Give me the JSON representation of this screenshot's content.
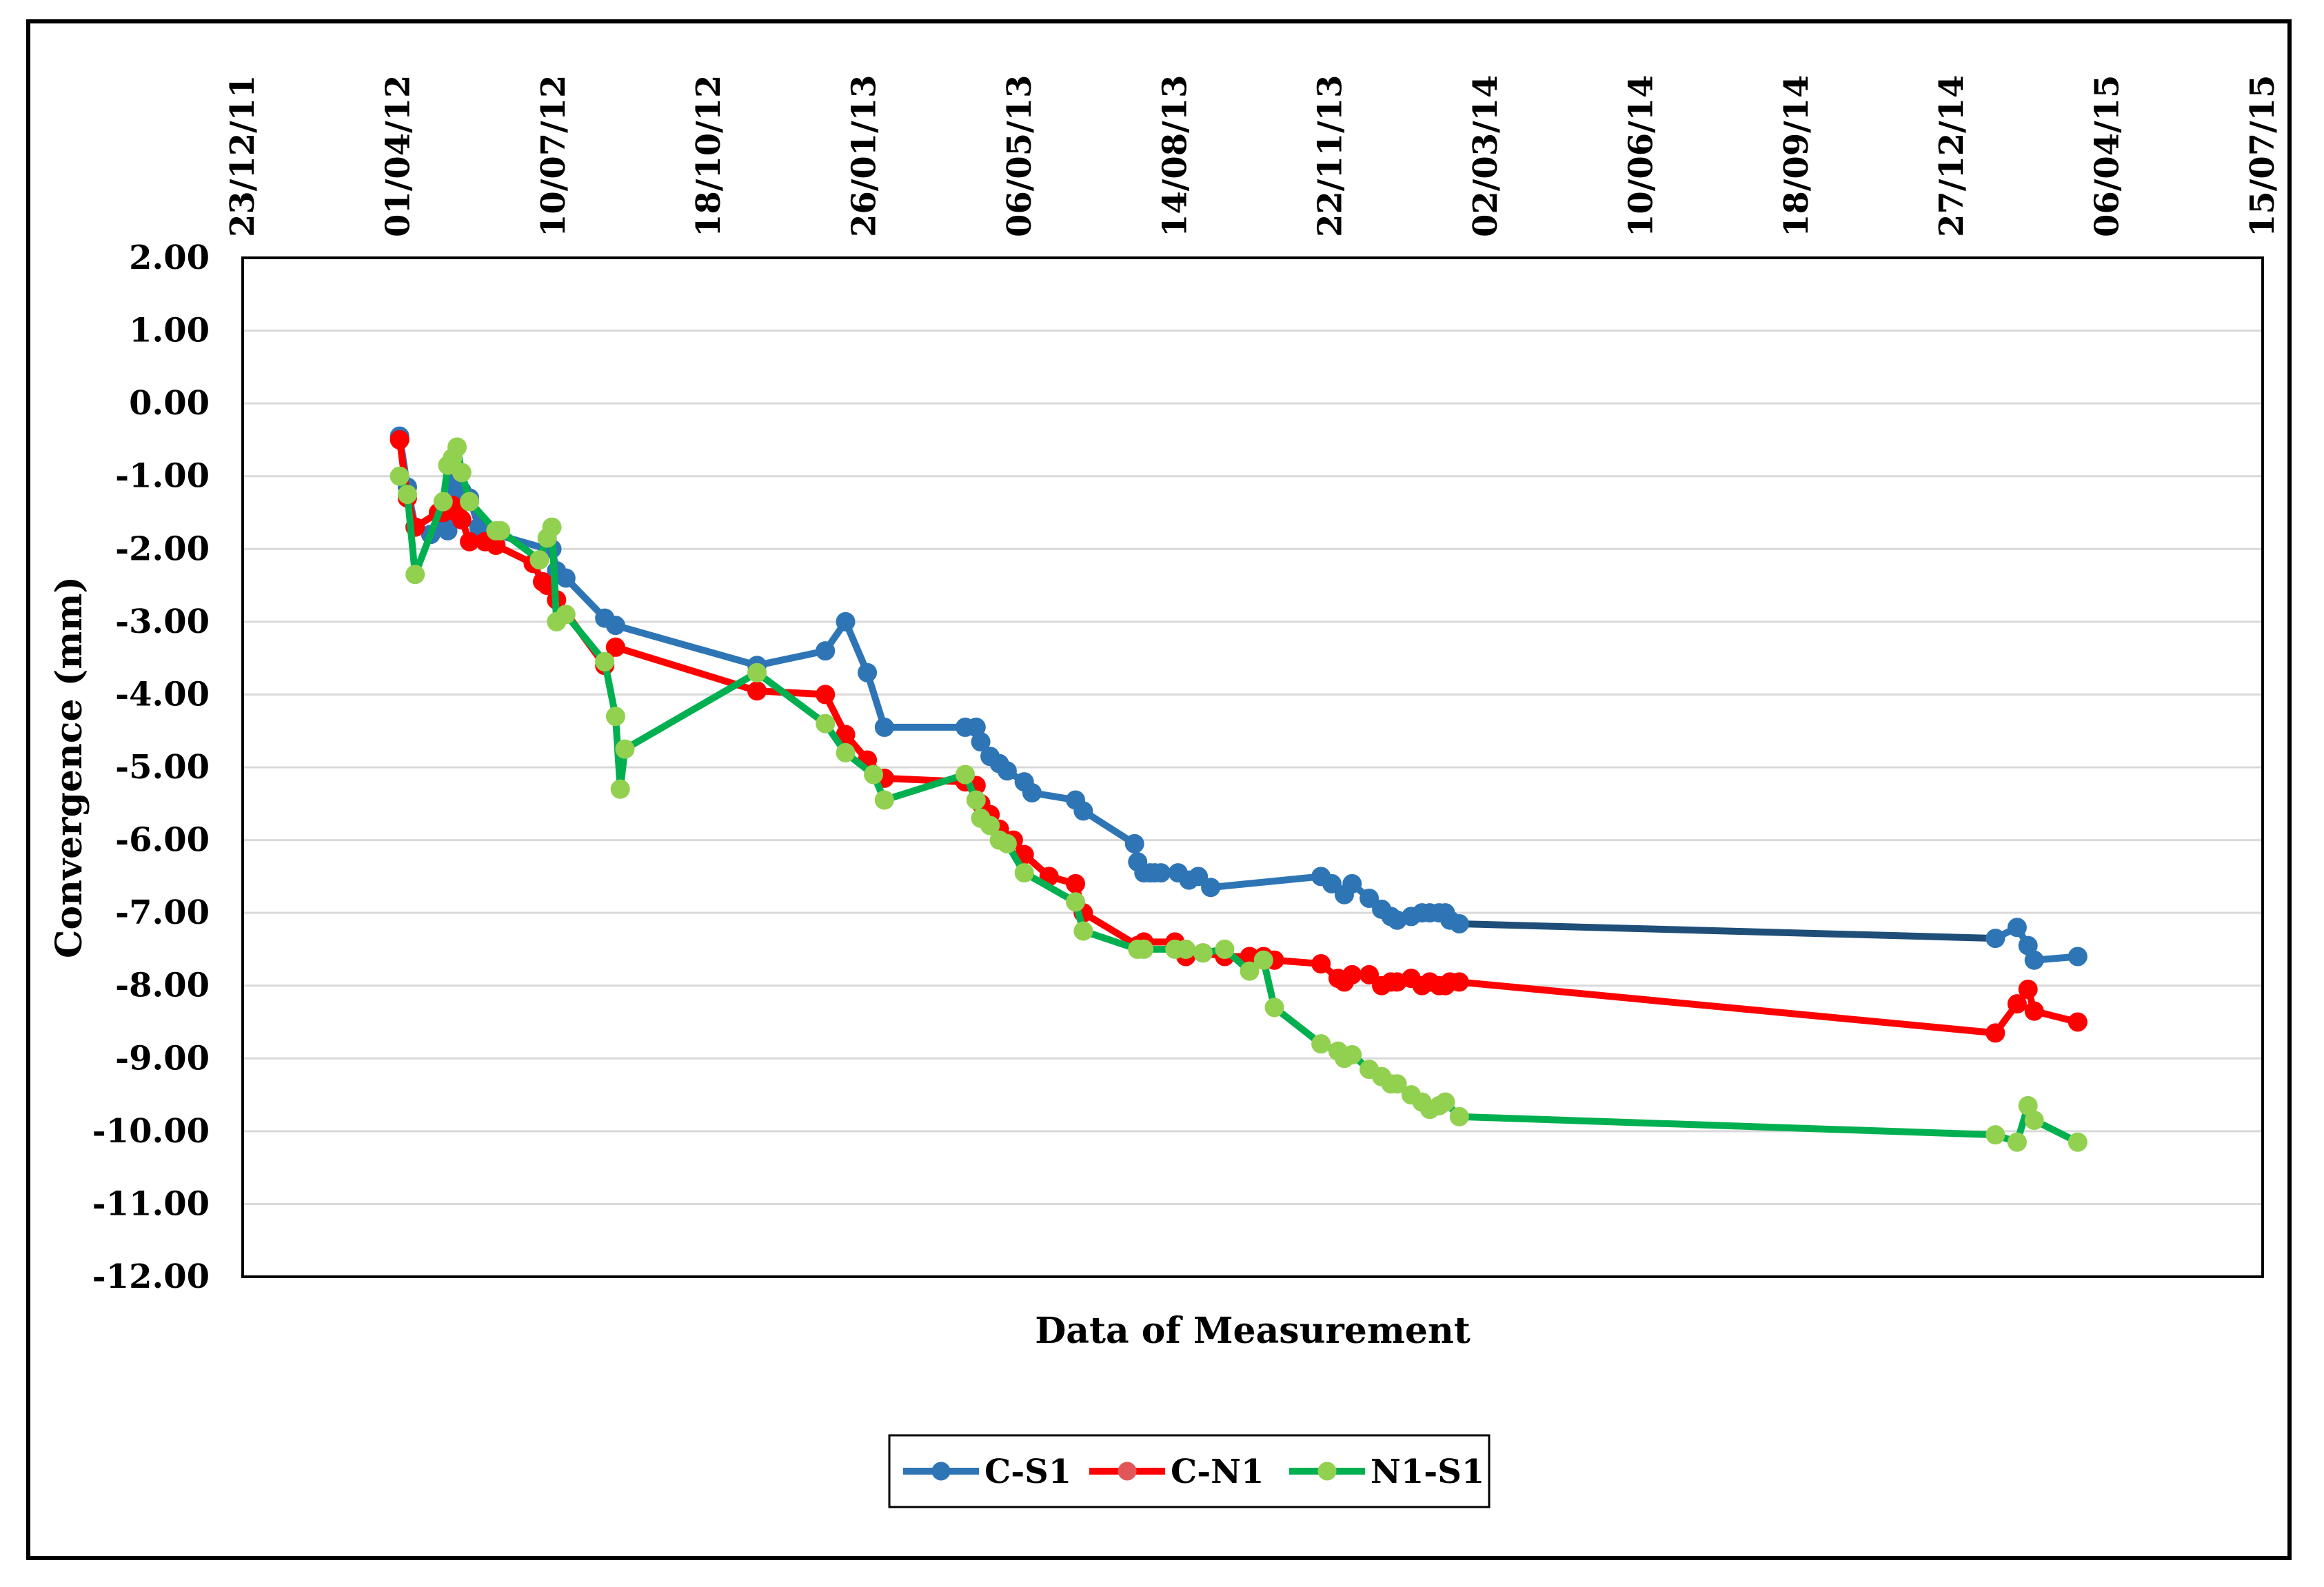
{
  "chart_data": {
    "type": "line",
    "xlabel": "Data of Measurement",
    "ylabel": "Convergence (mm)",
    "ylim": [
      -12,
      2
    ],
    "yticks": [
      2,
      1,
      0,
      -1,
      -2,
      -3,
      -4,
      -5,
      -6,
      -7,
      -8,
      -9,
      -10,
      -11,
      -12
    ],
    "ytick_labels": [
      "2.00",
      "1.00",
      "0.00",
      "-1.00",
      "-2.00",
      "-3.00",
      "-4.00",
      "-5.00",
      "-6.00",
      "-7.00",
      "-8.00",
      "-9.00",
      "-10.00",
      "-11.00",
      "-12.00"
    ],
    "xlim": [
      "2011-12-23",
      "2015-07-15"
    ],
    "xticks": [
      "2011-12-23",
      "2012-04-01",
      "2012-07-10",
      "2012-10-18",
      "2013-01-26",
      "2013-05-06",
      "2013-08-14",
      "2013-11-22",
      "2014-03-02",
      "2014-06-10",
      "2014-09-18",
      "2014-12-27",
      "2015-04-06",
      "2015-07-15"
    ],
    "xtick_labels": [
      "23/12/11",
      "01/04/12",
      "10/07/12",
      "18/10/12",
      "26/01/13",
      "06/05/13",
      "14/08/13",
      "22/11/13",
      "02/03/14",
      "10/06/14",
      "18/09/14",
      "27/12/14",
      "06/04/15",
      "15/07/15"
    ],
    "grid": "horizontal",
    "legend_position": "bottom",
    "series": [
      {
        "name": "C-S1",
        "color": "#2e75b6",
        "gap_color": "#1f4e79",
        "x": [
          "2012-04-02",
          "2012-04-07",
          "2012-04-12",
          "2012-04-22",
          "2012-04-30",
          "2012-05-03",
          "2012-05-06",
          "2012-05-09",
          "2012-05-12",
          "2012-05-17",
          "2012-05-23",
          "2012-06-03",
          "2012-07-06",
          "2012-07-09",
          "2012-07-12",
          "2012-07-18",
          "2012-08-12",
          "2012-08-19",
          "2012-11-18",
          "2013-01-01",
          "2013-01-14",
          "2013-01-28",
          "2013-02-08",
          "2013-04-01",
          "2013-04-08",
          "2013-04-11",
          "2013-04-17",
          "2013-04-23",
          "2013-04-28",
          "2013-05-09",
          "2013-05-14",
          "2013-06-11",
          "2013-06-16",
          "2013-07-19",
          "2013-07-21",
          "2013-07-25",
          "2013-07-29",
          "2013-08-01",
          "2013-08-05",
          "2013-08-16",
          "2013-08-23",
          "2013-08-29",
          "2013-09-06",
          "2013-11-16",
          "2013-11-23",
          "2013-12-01",
          "2013-12-06",
          "2013-12-17",
          "2013-12-25",
          "2013-12-31",
          "2014-01-04",
          "2014-01-13",
          "2014-01-20",
          "2014-01-25",
          "2014-01-31",
          "2014-02-04",
          "2014-02-07",
          "2014-02-13",
          "2015-01-24",
          "2015-02-07",
          "2015-02-14",
          "2015-02-18",
          "2015-03-18"
        ],
        "values": [
          -0.45,
          -1.15,
          -1.7,
          -1.8,
          -1.7,
          -1.75,
          -1.1,
          -1.15,
          -1.2,
          -1.3,
          -1.7,
          -1.8,
          -2.0,
          -2.0,
          -2.3,
          -2.4,
          -2.95,
          -3.05,
          -3.6,
          -3.4,
          -3.0,
          -3.7,
          -4.45,
          -4.45,
          -4.45,
          -4.65,
          -4.85,
          -4.95,
          -5.05,
          -5.2,
          -5.35,
          -5.45,
          -5.6,
          -6.05,
          -6.3,
          -6.45,
          -6.45,
          -6.45,
          -6.45,
          -6.45,
          -6.55,
          -6.5,
          -6.65,
          -6.5,
          -6.6,
          -6.75,
          -6.6,
          -6.8,
          -6.95,
          -7.05,
          -7.1,
          -7.05,
          -7.0,
          -7.0,
          -7.0,
          -7.0,
          -7.1,
          -7.15,
          -7.35,
          -7.2,
          -7.45,
          -7.65,
          -7.6
        ]
      },
      {
        "name": "C-N1",
        "color": "#ff0000",
        "x": [
          "2012-04-02",
          "2012-04-07",
          "2012-04-12",
          "2012-04-27",
          "2012-04-30",
          "2012-05-06",
          "2012-05-09",
          "2012-05-12",
          "2012-05-17",
          "2012-05-27",
          "2012-06-03",
          "2012-06-27",
          "2012-07-03",
          "2012-07-06",
          "2012-07-12",
          "2012-08-12",
          "2012-08-19",
          "2012-11-18",
          "2013-01-01",
          "2013-01-14",
          "2013-01-28",
          "2013-02-08",
          "2013-04-01",
          "2013-04-08",
          "2013-04-11",
          "2013-04-17",
          "2013-04-23",
          "2013-05-02",
          "2013-05-09",
          "2013-05-25",
          "2013-06-11",
          "2013-06-16",
          "2013-07-21",
          "2013-07-25",
          "2013-08-14",
          "2013-08-21",
          "2013-09-01",
          "2013-09-15",
          "2013-10-01",
          "2013-10-10",
          "2013-10-17",
          "2013-11-16",
          "2013-11-27",
          "2013-12-01",
          "2013-12-06",
          "2013-12-17",
          "2013-12-25",
          "2013-12-31",
          "2014-01-04",
          "2014-01-13",
          "2014-01-20",
          "2014-01-25",
          "2014-01-31",
          "2014-02-04",
          "2014-02-07",
          "2014-02-13",
          "2015-01-24",
          "2015-02-07",
          "2015-02-14",
          "2015-02-18",
          "2015-03-18"
        ],
        "values": [
          -0.5,
          -1.3,
          -1.7,
          -1.5,
          -1.5,
          -1.4,
          -1.5,
          -1.6,
          -1.9,
          -1.9,
          -1.95,
          -2.2,
          -2.45,
          -2.5,
          -2.7,
          -3.6,
          -3.35,
          -3.95,
          -4.0,
          -4.55,
          -4.9,
          -5.15,
          -5.2,
          -5.25,
          -5.5,
          -5.65,
          -5.85,
          -6.0,
          -6.2,
          -6.5,
          -6.6,
          -7.0,
          -7.45,
          -7.4,
          -7.4,
          -7.6,
          -7.55,
          -7.6,
          -7.6,
          -7.6,
          -7.65,
          -7.7,
          -7.9,
          -7.95,
          -7.85,
          -7.85,
          -8.0,
          -7.95,
          -7.95,
          -7.9,
          -8.0,
          -7.95,
          -8.0,
          -8.0,
          -7.95,
          -7.95,
          -8.65,
          -8.25,
          -8.05,
          -8.35,
          -8.5
        ]
      },
      {
        "name": "N1-S1",
        "color": "#00b050",
        "marker_color": "#92d050",
        "x": [
          "2012-04-02",
          "2012-04-07",
          "2012-04-12",
          "2012-04-30",
          "2012-05-03",
          "2012-05-06",
          "2012-05-09",
          "2012-05-12",
          "2012-05-17",
          "2012-06-03",
          "2012-06-06",
          "2012-07-01",
          "2012-07-06",
          "2012-07-09",
          "2012-07-12",
          "2012-07-18",
          "2012-08-12",
          "2012-08-19",
          "2012-08-22",
          "2012-08-25",
          "2012-11-18",
          "2013-01-01",
          "2013-01-14",
          "2013-02-01",
          "2013-02-08",
          "2013-04-01",
          "2013-04-08",
          "2013-04-11",
          "2013-04-17",
          "2013-04-23",
          "2013-04-28",
          "2013-05-09",
          "2013-06-11",
          "2013-06-16",
          "2013-07-21",
          "2013-07-25",
          "2013-08-14",
          "2013-08-21",
          "2013-09-01",
          "2013-09-15",
          "2013-10-01",
          "2013-10-10",
          "2013-10-17",
          "2013-11-16",
          "2013-11-27",
          "2013-12-01",
          "2013-12-06",
          "2013-12-17",
          "2013-12-25",
          "2013-12-31",
          "2014-01-04",
          "2014-01-13",
          "2014-01-20",
          "2014-01-25",
          "2014-01-31",
          "2014-02-04",
          "2014-02-13",
          "2015-01-24",
          "2015-02-07",
          "2015-02-14",
          "2015-02-18",
          "2015-03-18"
        ],
        "values": [
          -1.0,
          -1.25,
          -2.35,
          -1.35,
          -0.85,
          -0.75,
          -0.6,
          -0.95,
          -1.35,
          -1.75,
          -1.75,
          -2.15,
          -1.85,
          -1.7,
          -3.0,
          -2.9,
          -3.55,
          -4.3,
          -5.3,
          -4.75,
          -3.7,
          -4.4,
          -4.8,
          -5.1,
          -5.45,
          -5.1,
          -5.45,
          -5.7,
          -5.8,
          -6.0,
          -6.05,
          -6.45,
          -6.85,
          -7.25,
          -7.5,
          -7.5,
          -7.5,
          -7.5,
          -7.55,
          -7.5,
          -7.8,
          -7.65,
          -8.3,
          -8.8,
          -8.9,
          -9.0,
          -8.95,
          -9.15,
          -9.25,
          -9.35,
          -9.35,
          -9.5,
          -9.6,
          -9.7,
          -9.65,
          -9.6,
          -9.8,
          -10.05,
          -10.15,
          -9.65,
          -9.85,
          -10.15
        ]
      }
    ]
  },
  "legend": {
    "items": [
      {
        "label": "C-S1",
        "color": "#2e75b6",
        "marker_color": "#2e75b6"
      },
      {
        "label": "C-N1",
        "color": "#ff0000",
        "marker_color": "#e15759"
      },
      {
        "label": "N1-S1",
        "color": "#00b050",
        "marker_color": "#92d050"
      }
    ]
  }
}
